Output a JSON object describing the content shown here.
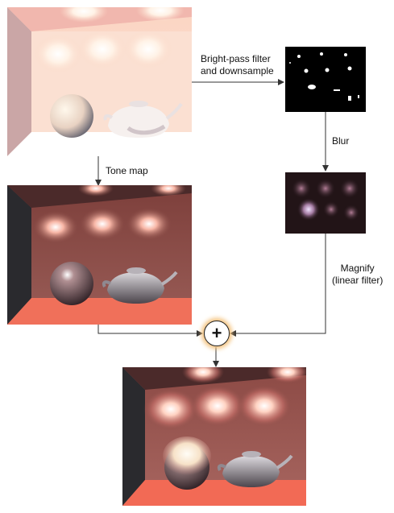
{
  "labels": {
    "bright_pass": [
      "Bright-pass filter",
      "and downsample"
    ],
    "blur": "Blur",
    "tone_map": "Tone map",
    "magnify": [
      "Magnify",
      "(linear filter)"
    ]
  },
  "combine_symbol": "+",
  "colors": {
    "arrow": "#333333",
    "plus_glow": "#f3c079",
    "hdr_wall": "#fbd8c6",
    "tone_wall": "#8a4c46",
    "tone_floor": "#f0705a",
    "final_floor": "#f26a55"
  }
}
